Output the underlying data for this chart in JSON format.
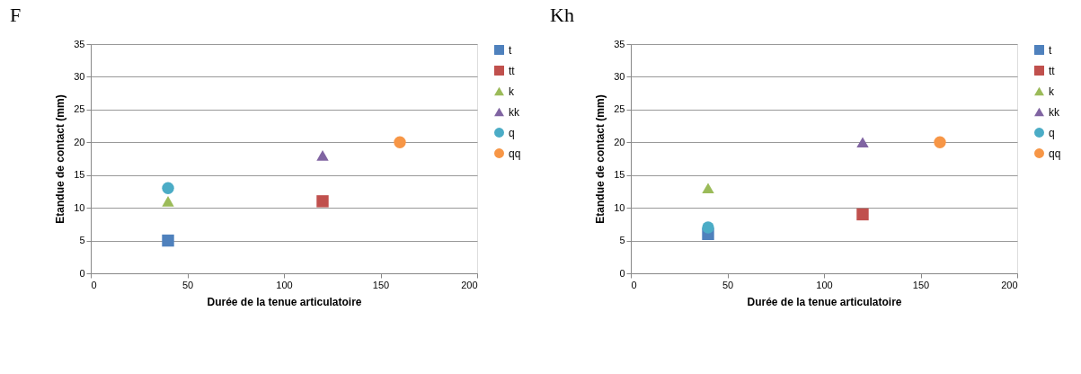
{
  "chart_data": [
    {
      "type": "scatter",
      "title": "F",
      "xlabel": "Durée de la tenue articulatoire",
      "ylabel": "Etandue de contact (mm)",
      "xlim": [
        0,
        200
      ],
      "xticks": [
        0,
        50,
        100,
        150,
        200
      ],
      "ylim": [
        0,
        35
      ],
      "yticks": [
        0,
        5,
        10,
        15,
        20,
        25,
        30,
        35
      ],
      "grid": "y",
      "legend": "right",
      "series": [
        {
          "name": "t",
          "color": "#4f81bd",
          "marker": "square",
          "x": [
            40
          ],
          "values": [
            5
          ]
        },
        {
          "name": "tt",
          "color": "#c0504d",
          "marker": "square",
          "x": [
            120
          ],
          "values": [
            11
          ]
        },
        {
          "name": "k",
          "color": "#9bbb59",
          "marker": "triangle",
          "x": [
            40
          ],
          "values": [
            11
          ]
        },
        {
          "name": "kk",
          "color": "#8064a2",
          "marker": "triangle",
          "x": [
            120
          ],
          "values": [
            18
          ]
        },
        {
          "name": "q",
          "color": "#4bacc6",
          "marker": "circle",
          "x": [
            40
          ],
          "values": [
            13
          ]
        },
        {
          "name": "qq",
          "color": "#f79646",
          "marker": "circle",
          "x": [
            160
          ],
          "values": [
            20
          ]
        }
      ]
    },
    {
      "type": "scatter",
      "title": "Kh",
      "xlabel": "Durée de la tenue articulatoire",
      "ylabel": "Etandue de contact (mm)",
      "xlim": [
        0,
        200
      ],
      "xticks": [
        0,
        50,
        100,
        150,
        200
      ],
      "ylim": [
        0,
        35
      ],
      "yticks": [
        0,
        5,
        10,
        15,
        20,
        25,
        30,
        35
      ],
      "grid": "y",
      "legend": "right",
      "series": [
        {
          "name": "t",
          "color": "#4f81bd",
          "marker": "square",
          "x": [
            40
          ],
          "values": [
            6
          ]
        },
        {
          "name": "tt",
          "color": "#c0504d",
          "marker": "square",
          "x": [
            120
          ],
          "values": [
            9
          ]
        },
        {
          "name": "k",
          "color": "#9bbb59",
          "marker": "triangle",
          "x": [
            40
          ],
          "values": [
            13
          ]
        },
        {
          "name": "kk",
          "color": "#8064a2",
          "marker": "triangle",
          "x": [
            120
          ],
          "values": [
            20
          ]
        },
        {
          "name": "q",
          "color": "#4bacc6",
          "marker": "circle",
          "x": [
            40
          ],
          "values": [
            7
          ]
        },
        {
          "name": "qq",
          "color": "#f79646",
          "marker": "circle",
          "x": [
            160
          ],
          "values": [
            20
          ]
        }
      ]
    }
  ]
}
